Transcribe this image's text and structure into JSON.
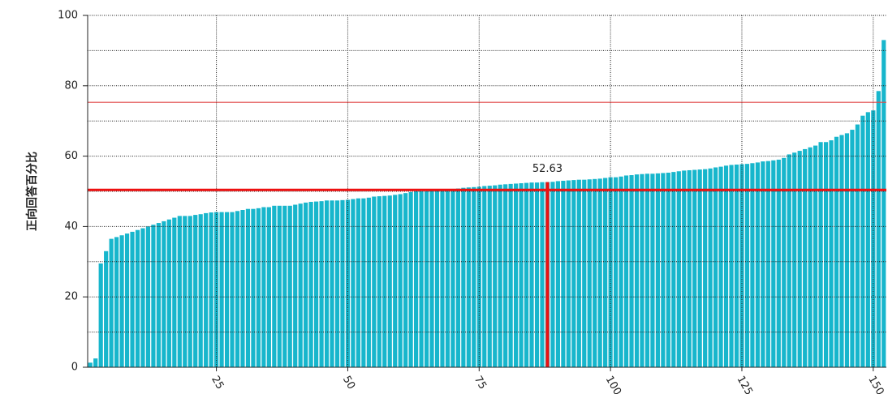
{
  "chart_data": {
    "type": "bar",
    "y_label": "正向回答百分比",
    "color": "#17b6cc",
    "grid": true,
    "xlim": [
      0.5,
      152.5
    ],
    "xticks": [
      25,
      50,
      75,
      100,
      125,
      150
    ],
    "ylim": [
      0,
      100
    ],
    "yticks": [
      0,
      20,
      40,
      60,
      80,
      100
    ],
    "yminor": [
      10,
      30,
      50,
      70,
      90
    ],
    "x": [
      1,
      2,
      3,
      4,
      5,
      6,
      7,
      8,
      9,
      10,
      11,
      12,
      13,
      14,
      15,
      16,
      17,
      18,
      19,
      20,
      21,
      22,
      23,
      24,
      25,
      26,
      27,
      28,
      29,
      30,
      31,
      32,
      33,
      34,
      35,
      36,
      37,
      38,
      39,
      40,
      41,
      42,
      43,
      44,
      45,
      46,
      47,
      48,
      49,
      50,
      51,
      52,
      53,
      54,
      55,
      56,
      57,
      58,
      59,
      60,
      61,
      62,
      63,
      64,
      65,
      66,
      67,
      68,
      69,
      70,
      71,
      72,
      73,
      74,
      75,
      76,
      77,
      78,
      79,
      80,
      81,
      82,
      83,
      84,
      85,
      86,
      87,
      88,
      89,
      90,
      91,
      92,
      93,
      94,
      95,
      96,
      97,
      98,
      99,
      100,
      101,
      102,
      103,
      104,
      105,
      106,
      107,
      108,
      109,
      110,
      111,
      112,
      113,
      114,
      115,
      116,
      117,
      118,
      119,
      120,
      121,
      122,
      123,
      124,
      125,
      126,
      127,
      128,
      129,
      130,
      131,
      132,
      133,
      134,
      135,
      136,
      137,
      138,
      139,
      140,
      141,
      142,
      143,
      144,
      145,
      146,
      147,
      148,
      149,
      150,
      151,
      152
    ],
    "values": [
      1.3,
      2.5,
      29.5,
      33,
      36.5,
      37,
      37.5,
      38,
      38.5,
      39,
      39.5,
      40,
      40.5,
      41,
      41.5,
      42,
      42.5,
      43,
      43,
      43,
      43.3,
      43.5,
      43.8,
      44,
      44.1,
      44.1,
      44.1,
      44.1,
      44.4,
      44.7,
      45,
      45,
      45.2,
      45.5,
      45.5,
      45.9,
      45.9,
      45.9,
      45.9,
      46.2,
      46.5,
      46.8,
      47,
      47.1,
      47.2,
      47.4,
      47.4,
      47.4,
      47.5,
      47.6,
      47.8,
      48,
      48,
      48.2,
      48.5,
      48.6,
      48.7,
      48.8,
      49,
      49.2,
      49.5,
      49.8,
      50,
      50,
      50,
      50.2,
      50.4,
      50.5,
      50.6,
      50.7,
      50.8,
      51,
      51.1,
      51.2,
      51.3,
      51.5,
      51.6,
      51.7,
      51.9,
      52,
      52.1,
      52.2,
      52.3,
      52.4,
      52.5,
      52.5,
      52.6,
      52.63,
      52.7,
      52.9,
      53,
      53.1,
      53.2,
      53.3,
      53.3,
      53.4,
      53.5,
      53.6,
      53.8,
      54,
      54,
      54.2,
      54.5,
      54.6,
      54.8,
      54.9,
      55,
      55,
      55.1,
      55.2,
      55.3,
      55.5,
      55.7,
      55.9,
      56,
      56.1,
      56.2,
      56.3,
      56.5,
      56.8,
      57,
      57.3,
      57.5,
      57.6,
      57.7,
      57.8,
      58,
      58.2,
      58.5,
      58.6,
      58.8,
      59,
      59.5,
      60.5,
      61,
      61.5,
      62,
      62.5,
      63,
      64,
      64,
      64.5,
      65.5,
      66,
      66.5,
      67.5,
      69,
      71.5,
      72.5,
      73,
      78.5,
      93
    ],
    "hlines": [
      {
        "value": 75.3,
        "color": "#e04848"
      },
      {
        "value": 50.4,
        "color": "#ee1111"
      }
    ],
    "annotation": {
      "x": 88,
      "value": 52.63,
      "color": "#ee1111"
    }
  }
}
